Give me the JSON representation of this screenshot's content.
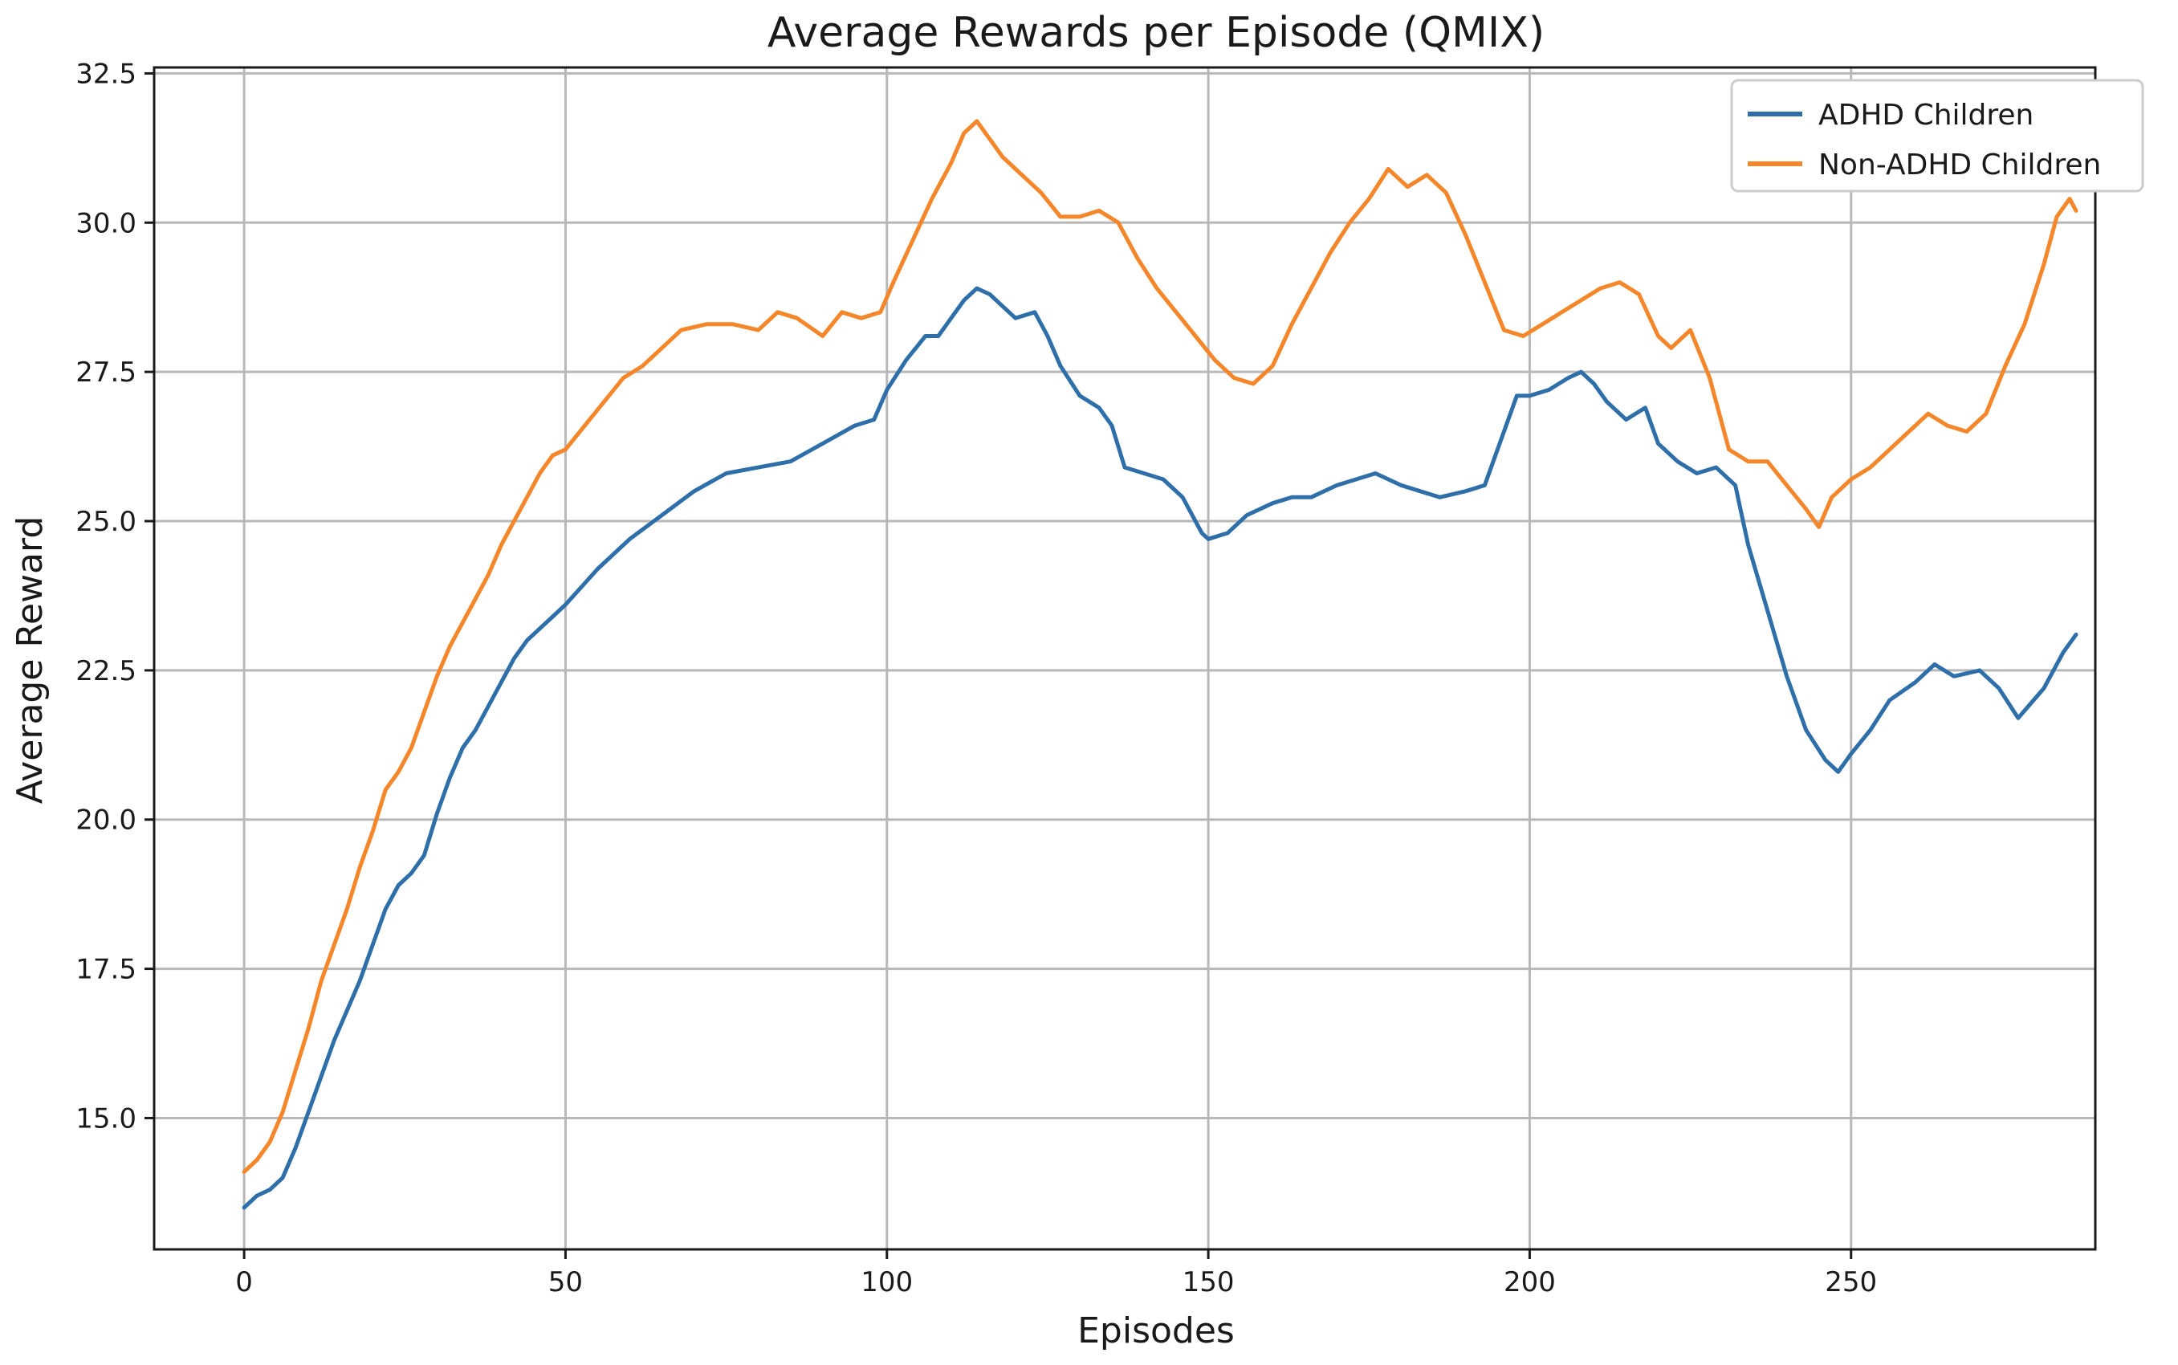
{
  "chart_data": {
    "type": "line",
    "title": "Average Rewards per Episode (QMIX)",
    "xlabel": "Episodes",
    "ylabel": "Average Reward",
    "xlim": [
      -14,
      288
    ],
    "ylim": [
      12.8,
      32.6
    ],
    "xticks": [
      0,
      50,
      100,
      150,
      200,
      250
    ],
    "xtick_labels": [
      "0",
      "50",
      "100",
      "150",
      "200",
      "250"
    ],
    "yticks": [
      15.0,
      17.5,
      20.0,
      22.5,
      25.0,
      27.5,
      30.0,
      32.5
    ],
    "ytick_labels": [
      "15.0",
      "17.5",
      "20.0",
      "22.5",
      "25.0",
      "27.5",
      "30.0",
      "32.5"
    ],
    "grid": true,
    "legend_position": "top-right",
    "series": [
      {
        "name": "ADHD Children",
        "color": "#2e6faa",
        "x": [
          0,
          2,
          4,
          6,
          8,
          10,
          12,
          14,
          16,
          18,
          20,
          22,
          24,
          26,
          28,
          30,
          32,
          34,
          36,
          38,
          40,
          42,
          44,
          46,
          48,
          50,
          55,
          60,
          65,
          70,
          75,
          80,
          85,
          90,
          95,
          98,
          100,
          103,
          106,
          108,
          110,
          112,
          114,
          116,
          118,
          120,
          123,
          125,
          127,
          130,
          133,
          135,
          137,
          140,
          143,
          146,
          149,
          150,
          153,
          156,
          160,
          163,
          166,
          170,
          173,
          176,
          180,
          183,
          186,
          190,
          193,
          196,
          198,
          200,
          203,
          206,
          208,
          210,
          212,
          215,
          218,
          220,
          223,
          226,
          229,
          232,
          234,
          237,
          240,
          243,
          246,
          248,
          250,
          253,
          256,
          260,
          263,
          266,
          270,
          273,
          276,
          280,
          283,
          285
        ],
        "y": [
          13.5,
          13.7,
          13.8,
          14.0,
          14.5,
          15.1,
          15.7,
          16.3,
          16.8,
          17.3,
          17.9,
          18.5,
          18.9,
          19.1,
          19.4,
          20.1,
          20.7,
          21.2,
          21.5,
          21.9,
          22.3,
          22.7,
          23.0,
          23.2,
          23.4,
          23.6,
          24.2,
          24.7,
          25.1,
          25.5,
          25.8,
          25.9,
          26.0,
          26.3,
          26.6,
          26.7,
          27.2,
          27.7,
          28.1,
          28.1,
          28.4,
          28.7,
          28.9,
          28.8,
          28.6,
          28.4,
          28.5,
          28.1,
          27.6,
          27.1,
          26.9,
          26.6,
          25.9,
          25.8,
          25.7,
          25.4,
          24.8,
          24.7,
          24.8,
          25.1,
          25.3,
          25.4,
          25.4,
          25.6,
          25.7,
          25.8,
          25.6,
          25.5,
          25.4,
          25.5,
          25.6,
          26.5,
          27.1,
          27.1,
          27.2,
          27.4,
          27.5,
          27.3,
          27.0,
          26.7,
          26.9,
          26.3,
          26.0,
          25.8,
          25.9,
          25.6,
          24.6,
          23.5,
          22.4,
          21.5,
          21.0,
          20.8,
          21.1,
          21.5,
          22.0,
          22.3,
          22.6,
          22.4,
          22.5,
          22.2,
          21.7,
          22.2,
          22.8,
          23.1
        ]
      },
      {
        "name": "Non-ADHD Children",
        "color": "#f5862a",
        "x": [
          0,
          2,
          4,
          6,
          8,
          10,
          12,
          14,
          16,
          18,
          20,
          22,
          24,
          26,
          28,
          30,
          32,
          34,
          36,
          38,
          40,
          42,
          44,
          46,
          48,
          50,
          53,
          56,
          59,
          62,
          65,
          68,
          72,
          76,
          80,
          83,
          86,
          90,
          93,
          96,
          99,
          101,
          104,
          107,
          110,
          112,
          114,
          116,
          118,
          121,
          124,
          127,
          130,
          133,
          136,
          139,
          142,
          145,
          148,
          151,
          154,
          157,
          160,
          163,
          166,
          169,
          172,
          175,
          178,
          181,
          184,
          187,
          190,
          193,
          196,
          199,
          202,
          205,
          208,
          211,
          214,
          217,
          220,
          222,
          225,
          228,
          231,
          234,
          237,
          240,
          243,
          245,
          247,
          250,
          253,
          256,
          259,
          262,
          265,
          268,
          271,
          274,
          277,
          280,
          282,
          284,
          285
        ],
        "y": [
          14.1,
          14.3,
          14.6,
          15.1,
          15.8,
          16.5,
          17.3,
          17.9,
          18.5,
          19.2,
          19.8,
          20.5,
          20.8,
          21.2,
          21.8,
          22.4,
          22.9,
          23.3,
          23.7,
          24.1,
          24.6,
          25.0,
          25.4,
          25.8,
          26.1,
          26.2,
          26.6,
          27.0,
          27.4,
          27.6,
          27.9,
          28.2,
          28.3,
          28.3,
          28.2,
          28.5,
          28.4,
          28.1,
          28.5,
          28.4,
          28.5,
          29.0,
          29.7,
          30.4,
          31.0,
          31.5,
          31.7,
          31.4,
          31.1,
          30.8,
          30.5,
          30.1,
          30.1,
          30.2,
          30.0,
          29.4,
          28.9,
          28.5,
          28.1,
          27.7,
          27.4,
          27.3,
          27.6,
          28.3,
          28.9,
          29.5,
          30.0,
          30.4,
          30.9,
          30.6,
          30.8,
          30.5,
          29.8,
          29.0,
          28.2,
          28.1,
          28.3,
          28.5,
          28.7,
          28.9,
          29.0,
          28.8,
          28.1,
          27.9,
          28.2,
          27.4,
          26.2,
          26.0,
          26.0,
          25.6,
          25.2,
          24.9,
          25.4,
          25.7,
          25.9,
          26.2,
          26.5,
          26.8,
          26.6,
          26.5,
          26.8,
          27.6,
          28.3,
          29.3,
          30.1,
          30.4,
          30.2
        ]
      }
    ]
  }
}
